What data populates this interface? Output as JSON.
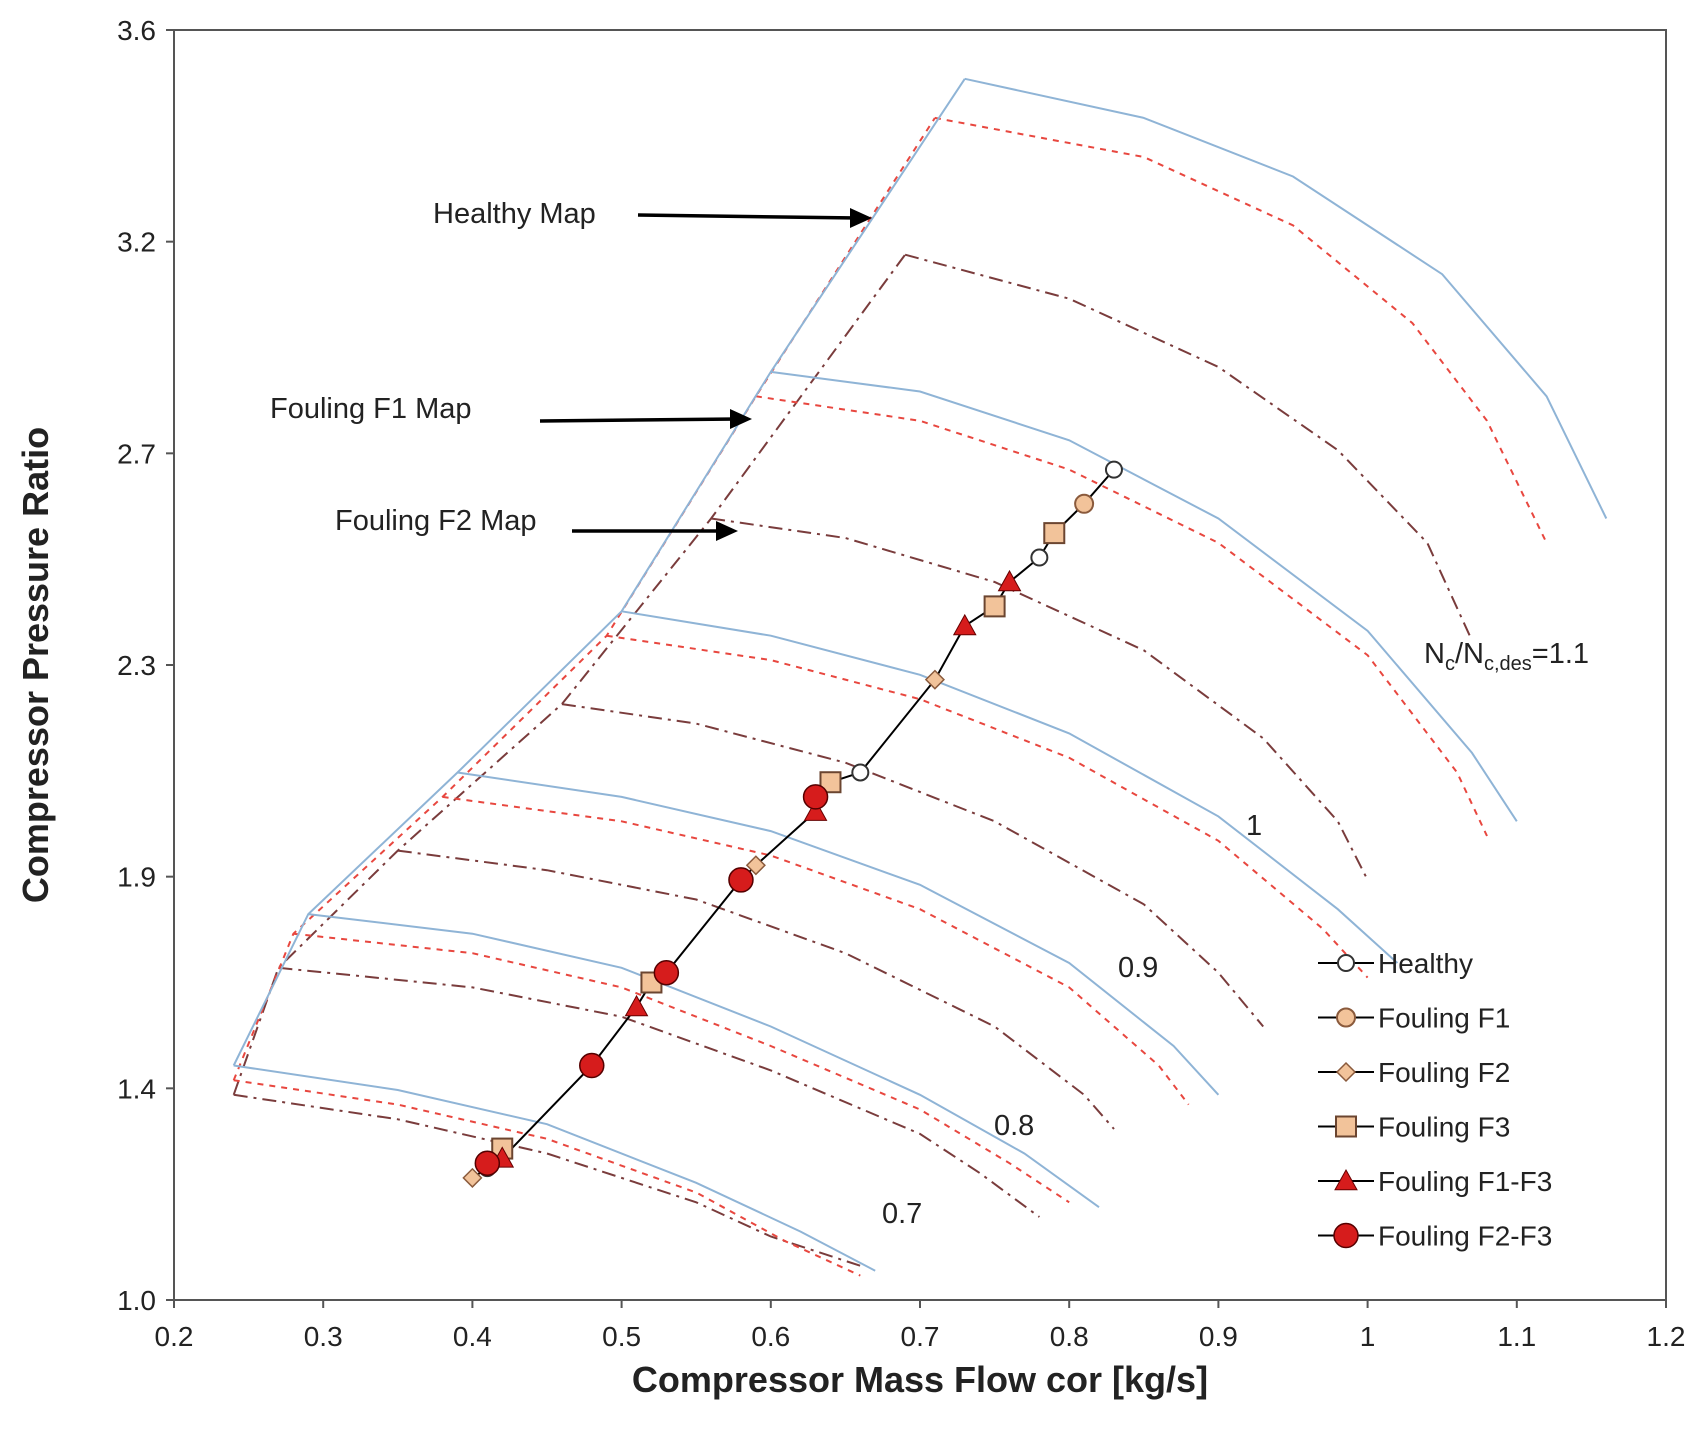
{
  "chart_data": {
    "type": "line",
    "title": "",
    "xlabel": "Compressor Mass Flow cor [kg/s]",
    "ylabel": "Compressor Pressure Ratio",
    "xlim": [
      0.2,
      1.2
    ],
    "ylim": [
      1.0,
      3.6
    ],
    "xticks": [
      "0.2",
      "0.3",
      "0.4",
      "0.5",
      "0.6",
      "0.7",
      "0.8",
      "0.9",
      "1",
      "1.1",
      "1.2"
    ],
    "yticks": [
      "1.0",
      "1.4",
      "1.9",
      "2.3",
      "2.7",
      "3.2",
      "3.6"
    ],
    "grid": false,
    "legend_position": "bottom-right",
    "colors": {
      "healthy_map": "#8fb4d6",
      "f1_map": "#e8473f",
      "f2_map": "#7a3c3c",
      "operating_line": "#000000",
      "marker_tan": "#f2c39a",
      "marker_red": "#d61c1c"
    },
    "annotations": {
      "healthy_map": "Healthy Map",
      "f1_map": "Fouling F1 Map",
      "f2_map": "Fouling F2 Map",
      "speed_top_prefix": "N",
      "speed_top_sub1": "c",
      "speed_top_mid": "/N",
      "speed_top_sub2": "c,des",
      "speed_top_suffix": "=1.1",
      "speed_labels": [
        "1",
        "0.9",
        "0.8",
        "0.7"
      ]
    },
    "series": [
      {
        "name": "Healthy",
        "marker": "open-circle",
        "x": [
          0.41,
          0.66,
          0.78,
          0.83
        ],
        "y": [
          1.27,
          2.08,
          2.52,
          2.7
        ]
      },
      {
        "name": "Fouling F1",
        "marker": "tan-circle",
        "x": [
          0.81
        ],
        "y": [
          2.63
        ]
      },
      {
        "name": "Fouling F2",
        "marker": "tan-diamond",
        "x": [
          0.4,
          0.59,
          0.71
        ],
        "y": [
          1.25,
          1.89,
          2.27
        ]
      },
      {
        "name": "Fouling F3",
        "marker": "tan-square",
        "x": [
          0.42,
          0.52,
          0.64,
          0.75,
          0.79
        ],
        "y": [
          1.31,
          1.65,
          2.06,
          2.42,
          2.57
        ]
      },
      {
        "name": "Fouling F1-F3",
        "marker": "red-triangle",
        "x": [
          0.42,
          0.51,
          0.63,
          0.73,
          0.76
        ],
        "y": [
          1.29,
          1.6,
          2.0,
          2.38,
          2.47
        ]
      },
      {
        "name": "Fouling F2-F3",
        "marker": "red-circle",
        "x": [
          0.41,
          0.48,
          0.53,
          0.58,
          0.63
        ],
        "y": [
          1.28,
          1.48,
          1.67,
          1.86,
          2.03
        ]
      }
    ],
    "speed_lines": {
      "healthy": [
        [
          [
            0.24,
            1.48
          ],
          [
            0.35,
            1.43
          ],
          [
            0.45,
            1.36
          ],
          [
            0.55,
            1.24
          ],
          [
            0.62,
            1.14
          ],
          [
            0.67,
            1.06
          ]
        ],
        [
          [
            0.29,
            1.79
          ],
          [
            0.4,
            1.75
          ],
          [
            0.5,
            1.68
          ],
          [
            0.6,
            1.56
          ],
          [
            0.7,
            1.42
          ],
          [
            0.77,
            1.3
          ],
          [
            0.82,
            1.19
          ]
        ],
        [
          [
            0.39,
            2.08
          ],
          [
            0.5,
            2.03
          ],
          [
            0.6,
            1.96
          ],
          [
            0.7,
            1.85
          ],
          [
            0.8,
            1.69
          ],
          [
            0.87,
            1.52
          ],
          [
            0.9,
            1.42
          ]
        ],
        [
          [
            0.5,
            2.41
          ],
          [
            0.6,
            2.36
          ],
          [
            0.7,
            2.28
          ],
          [
            0.8,
            2.16
          ],
          [
            0.9,
            1.99
          ],
          [
            0.98,
            1.8
          ],
          [
            1.02,
            1.69
          ]
        ],
        [
          [
            0.6,
            2.9
          ],
          [
            0.7,
            2.86
          ],
          [
            0.8,
            2.76
          ],
          [
            0.9,
            2.6
          ],
          [
            1.0,
            2.37
          ],
          [
            1.07,
            2.12
          ],
          [
            1.1,
            1.98
          ]
        ],
        [
          [
            0.73,
            3.5
          ],
          [
            0.85,
            3.42
          ],
          [
            0.95,
            3.3
          ],
          [
            1.05,
            3.1
          ],
          [
            1.12,
            2.85
          ],
          [
            1.16,
            2.6
          ]
        ]
      ],
      "f1": [
        [
          [
            0.24,
            1.45
          ],
          [
            0.35,
            1.4
          ],
          [
            0.45,
            1.33
          ],
          [
            0.55,
            1.22
          ],
          [
            0.61,
            1.12
          ],
          [
            0.66,
            1.05
          ]
        ],
        [
          [
            0.28,
            1.75
          ],
          [
            0.4,
            1.71
          ],
          [
            0.5,
            1.64
          ],
          [
            0.6,
            1.52
          ],
          [
            0.7,
            1.39
          ],
          [
            0.76,
            1.28
          ],
          [
            0.8,
            1.2
          ]
        ],
        [
          [
            0.38,
            2.03
          ],
          [
            0.5,
            1.98
          ],
          [
            0.6,
            1.91
          ],
          [
            0.7,
            1.8
          ],
          [
            0.8,
            1.64
          ],
          [
            0.86,
            1.48
          ],
          [
            0.88,
            1.4
          ]
        ],
        [
          [
            0.49,
            2.36
          ],
          [
            0.6,
            2.31
          ],
          [
            0.7,
            2.23
          ],
          [
            0.8,
            2.11
          ],
          [
            0.9,
            1.94
          ],
          [
            0.97,
            1.76
          ],
          [
            1.0,
            1.66
          ]
        ],
        [
          [
            0.59,
            2.85
          ],
          [
            0.7,
            2.8
          ],
          [
            0.8,
            2.7
          ],
          [
            0.9,
            2.55
          ],
          [
            1.0,
            2.32
          ],
          [
            1.06,
            2.08
          ],
          [
            1.08,
            1.95
          ]
        ],
        [
          [
            0.71,
            3.42
          ],
          [
            0.85,
            3.34
          ],
          [
            0.95,
            3.2
          ],
          [
            1.03,
            3.0
          ],
          [
            1.08,
            2.8
          ],
          [
            1.12,
            2.55
          ]
        ]
      ],
      "f2": [
        [
          [
            0.24,
            1.42
          ],
          [
            0.35,
            1.37
          ],
          [
            0.45,
            1.3
          ],
          [
            0.55,
            1.2
          ],
          [
            0.6,
            1.13
          ],
          [
            0.66,
            1.07
          ]
        ],
        [
          [
            0.27,
            1.68
          ],
          [
            0.4,
            1.64
          ],
          [
            0.5,
            1.58
          ],
          [
            0.6,
            1.47
          ],
          [
            0.7,
            1.34
          ],
          [
            0.74,
            1.26
          ],
          [
            0.78,
            1.17
          ]
        ],
        [
          [
            0.35,
            1.92
          ],
          [
            0.45,
            1.88
          ],
          [
            0.55,
            1.82
          ],
          [
            0.65,
            1.71
          ],
          [
            0.75,
            1.56
          ],
          [
            0.81,
            1.42
          ],
          [
            0.83,
            1.35
          ]
        ],
        [
          [
            0.46,
            2.22
          ],
          [
            0.55,
            2.18
          ],
          [
            0.65,
            2.1
          ],
          [
            0.75,
            1.98
          ],
          [
            0.85,
            1.81
          ],
          [
            0.9,
            1.67
          ],
          [
            0.93,
            1.56
          ]
        ],
        [
          [
            0.56,
            2.6
          ],
          [
            0.65,
            2.56
          ],
          [
            0.75,
            2.47
          ],
          [
            0.85,
            2.33
          ],
          [
            0.93,
            2.15
          ],
          [
            0.98,
            1.98
          ],
          [
            1.0,
            1.86
          ]
        ],
        [
          [
            0.69,
            3.14
          ],
          [
            0.8,
            3.05
          ],
          [
            0.9,
            2.91
          ],
          [
            0.98,
            2.74
          ],
          [
            1.04,
            2.55
          ],
          [
            1.07,
            2.35
          ]
        ]
      ]
    },
    "surge_lines": {
      "healthy": [
        [
          0.24,
          1.48
        ],
        [
          0.29,
          1.79
        ],
        [
          0.39,
          2.08
        ],
        [
          0.5,
          2.41
        ],
        [
          0.6,
          2.9
        ],
        [
          0.73,
          3.5
        ]
      ],
      "f1": [
        [
          0.24,
          1.45
        ],
        [
          0.28,
          1.75
        ],
        [
          0.38,
          2.03
        ],
        [
          0.49,
          2.36
        ],
        [
          0.59,
          2.85
        ],
        [
          0.71,
          3.42
        ]
      ],
      "f2": [
        [
          0.24,
          1.42
        ],
        [
          0.27,
          1.68
        ],
        [
          0.35,
          1.92
        ],
        [
          0.46,
          2.22
        ],
        [
          0.56,
          2.6
        ],
        [
          0.69,
          3.14
        ]
      ]
    }
  }
}
